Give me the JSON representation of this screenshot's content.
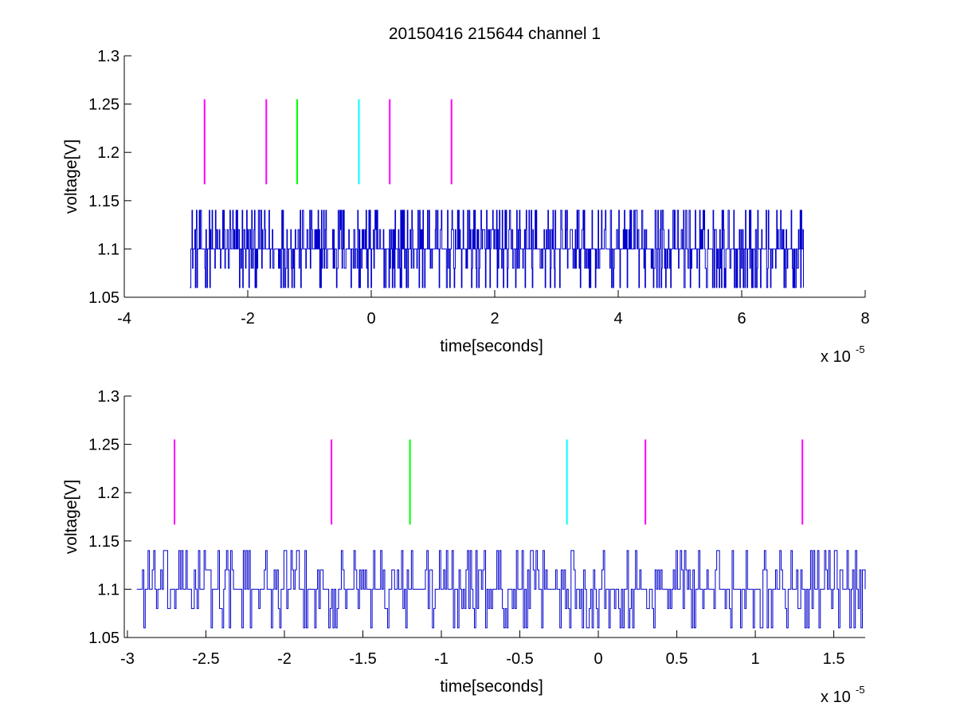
{
  "chart_data": [
    {
      "type": "line",
      "title": "20150416 215644 channel 1",
      "xlabel": "time[seconds]",
      "ylabel": "voltage[V]",
      "x_multiplier_base": "x 10",
      "x_multiplier_exponent": "-5",
      "xlim": [
        -4,
        8
      ],
      "ylim": [
        1.05,
        1.3
      ],
      "xticks": [
        -4,
        -2,
        0,
        2,
        4,
        6,
        8
      ],
      "xtick_labels": [
        "-4",
        "-2",
        "0",
        "2",
        "4",
        "6",
        "8"
      ],
      "yticks": [
        1.05,
        1.1,
        1.15,
        1.2,
        1.25,
        1.3
      ],
      "ytick_labels": [
        "1.05",
        "1.1",
        "1.15",
        "1.2",
        "1.25",
        "1.3"
      ],
      "grid": false,
      "series": [
        {
          "color": "#0000cc",
          "x_range": [
            -2.94,
            7.0
          ],
          "levels": [
            1.06,
            1.08,
            1.1,
            1.12,
            1.14
          ],
          "baseline": 1.1,
          "style": "quantized-noise"
        }
      ],
      "markers": [
        {
          "x": -2.7,
          "y_from": 1.167,
          "y_to": 1.255,
          "color": "#ff00ff"
        },
        {
          "x": -1.7,
          "y_from": 1.167,
          "y_to": 1.255,
          "color": "#ff00ff"
        },
        {
          "x": -1.2,
          "y_from": 1.167,
          "y_to": 1.255,
          "color": "#00ff00"
        },
        {
          "x": -0.2,
          "y_from": 1.167,
          "y_to": 1.255,
          "color": "#00ffff"
        },
        {
          "x": 0.3,
          "y_from": 1.167,
          "y_to": 1.255,
          "color": "#ff00ff"
        },
        {
          "x": 1.3,
          "y_from": 1.167,
          "y_to": 1.255,
          "color": "#ff00ff"
        }
      ]
    },
    {
      "type": "line",
      "title": "",
      "xlabel": "time[seconds]",
      "ylabel": "voltage[V]",
      "x_multiplier_base": "x 10",
      "x_multiplier_exponent": "-5",
      "xlim": [
        -3.02,
        1.7
      ],
      "ylim": [
        1.05,
        1.3
      ],
      "xticks": [
        -3,
        -2.5,
        -2,
        -1.5,
        -1,
        -0.5,
        0,
        0.5,
        1,
        1.5
      ],
      "xtick_labels": [
        "-3",
        "-2.5",
        "-2",
        "-1.5",
        "-1",
        "-0.5",
        "0",
        "0.5",
        "1",
        "1.5"
      ],
      "yticks": [
        1.05,
        1.1,
        1.15,
        1.2,
        1.25,
        1.3
      ],
      "ytick_labels": [
        "1.05",
        "1.1",
        "1.15",
        "1.2",
        "1.25",
        "1.3"
      ],
      "grid": false,
      "series": [
        {
          "color": "#0000cc",
          "x_range": [
            -2.94,
            1.7
          ],
          "levels": [
            1.06,
            1.08,
            1.1,
            1.12,
            1.14
          ],
          "baseline": 1.1,
          "style": "quantized-noise"
        }
      ],
      "markers": [
        {
          "x": -2.7,
          "y_from": 1.167,
          "y_to": 1.255,
          "color": "#ff00ff"
        },
        {
          "x": -1.7,
          "y_from": 1.167,
          "y_to": 1.255,
          "color": "#ff00ff"
        },
        {
          "x": -1.2,
          "y_from": 1.167,
          "y_to": 1.255,
          "color": "#00ff00"
        },
        {
          "x": -0.2,
          "y_from": 1.167,
          "y_to": 1.255,
          "color": "#00ffff"
        },
        {
          "x": 0.3,
          "y_from": 1.167,
          "y_to": 1.255,
          "color": "#ff00ff"
        },
        {
          "x": 1.3,
          "y_from": 1.167,
          "y_to": 1.255,
          "color": "#ff00ff"
        }
      ]
    }
  ]
}
